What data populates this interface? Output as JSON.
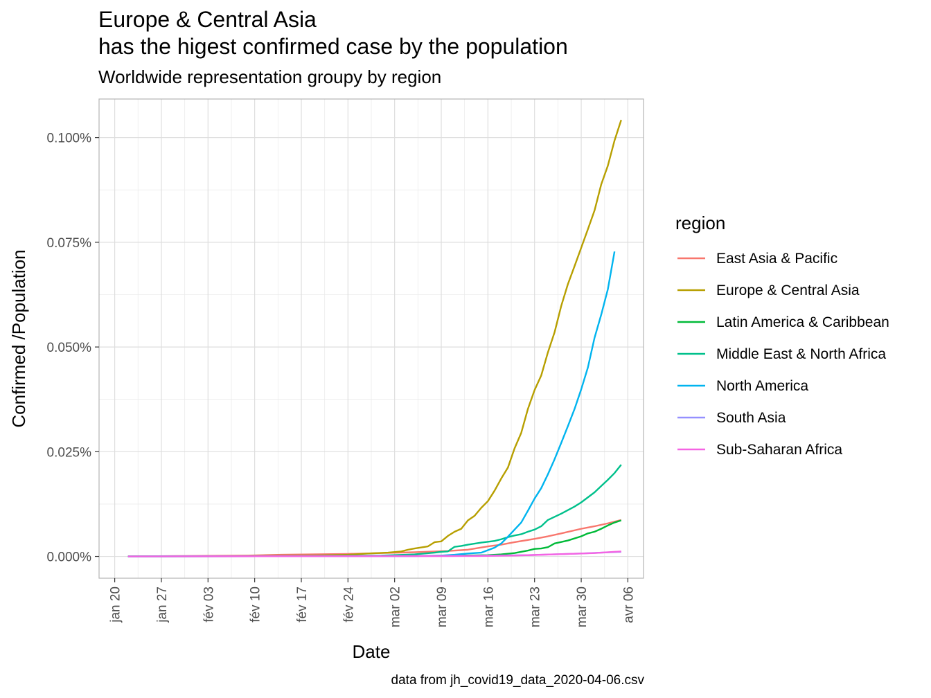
{
  "chart_data": {
    "type": "line",
    "title": "Europe & Central Asia",
    "title_line2": "has the higest confirmed case by the population",
    "subtitle": "Worldwide representation groupy by region",
    "xlabel": "Date",
    "ylabel": "Confirmed /Population",
    "caption": "data from jh_covid19_data_2020-04-06.csv",
    "legend_title": "region",
    "legend_position": "right",
    "grid": true,
    "x_ticks": [
      {
        "day": 0,
        "label": "jan 20"
      },
      {
        "day": 7,
        "label": "jan 27"
      },
      {
        "day": 14,
        "label": "fév 03"
      },
      {
        "day": 21,
        "label": "fév 10"
      },
      {
        "day": 28,
        "label": "fév 17"
      },
      {
        "day": 35,
        "label": "fév 24"
      },
      {
        "day": 42,
        "label": "mar 02"
      },
      {
        "day": 49,
        "label": "mar 09"
      },
      {
        "day": 56,
        "label": "mar 16"
      },
      {
        "day": 63,
        "label": "mar 23"
      },
      {
        "day": 70,
        "label": "mar 30"
      },
      {
        "day": 77,
        "label": "avr 06"
      }
    ],
    "xlim": [
      -2.35,
      79.35
    ],
    "y_ticks": [
      {
        "value": 0,
        "label": "0.000%"
      },
      {
        "value": 0.025,
        "label": "0.025%"
      },
      {
        "value": 0.05,
        "label": "0.050%"
      },
      {
        "value": 0.075,
        "label": "0.075%"
      },
      {
        "value": 0.1,
        "label": "0.100%"
      }
    ],
    "ylim": [
      -0.0052,
      0.1092
    ],
    "series": [
      {
        "name": "East Asia & Pacific",
        "color": "#F8766D",
        "points": [
          [
            2,
            0
          ],
          [
            10,
            0.0001
          ],
          [
            20,
            0.0002
          ],
          [
            25,
            0.0004
          ],
          [
            35,
            0.0006
          ],
          [
            40,
            0.0008
          ],
          [
            45,
            0.001
          ],
          [
            50,
            0.0013
          ],
          [
            53,
            0.0016
          ],
          [
            56,
            0.0024
          ],
          [
            58,
            0.0028
          ],
          [
            60,
            0.0034
          ],
          [
            63,
            0.0042
          ],
          [
            65,
            0.0048
          ],
          [
            67,
            0.0055
          ],
          [
            70,
            0.0066
          ],
          [
            72,
            0.0072
          ],
          [
            74,
            0.0079
          ],
          [
            76,
            0.0087
          ]
        ]
      },
      {
        "name": "Europe & Central Asia",
        "color": "#B79F00",
        "points": [
          [
            2,
            0
          ],
          [
            20,
            0.0001
          ],
          [
            30,
            0.0002
          ],
          [
            35,
            0.0004
          ],
          [
            38,
            0.0007
          ],
          [
            41,
            0.0009
          ],
          [
            43,
            0.0012
          ],
          [
            44,
            0.0016
          ],
          [
            45,
            0.0019
          ],
          [
            47,
            0.0024
          ],
          [
            48,
            0.0034
          ],
          [
            49,
            0.0036
          ],
          [
            50,
            0.0049
          ],
          [
            51,
            0.0059
          ],
          [
            52,
            0.0066
          ],
          [
            53,
            0.0086
          ],
          [
            54,
            0.0097
          ],
          [
            55,
            0.0116
          ],
          [
            56,
            0.0132
          ],
          [
            57,
            0.0157
          ],
          [
            58,
            0.0186
          ],
          [
            59,
            0.0212
          ],
          [
            60,
            0.0258
          ],
          [
            61,
            0.0295
          ],
          [
            62,
            0.0352
          ],
          [
            63,
            0.0397
          ],
          [
            64,
            0.0432
          ],
          [
            65,
            0.0487
          ],
          [
            66,
            0.0535
          ],
          [
            67,
            0.0598
          ],
          [
            68,
            0.065
          ],
          [
            69,
            0.0693
          ],
          [
            70,
            0.0737
          ],
          [
            71,
            0.0781
          ],
          [
            72,
            0.0826
          ],
          [
            73,
            0.0888
          ],
          [
            74,
            0.0933
          ],
          [
            75,
            0.0993
          ],
          [
            76,
            0.1042
          ]
        ]
      },
      {
        "name": "Latin America & Caribbean",
        "color": "#00BA38",
        "points": [
          [
            2,
            0
          ],
          [
            45,
            0.0001
          ],
          [
            52,
            0.0002
          ],
          [
            56,
            0.0003
          ],
          [
            58,
            0.0005
          ],
          [
            60,
            0.0008
          ],
          [
            62,
            0.0014
          ],
          [
            63,
            0.0018
          ],
          [
            64,
            0.0019
          ],
          [
            65,
            0.0022
          ],
          [
            66,
            0.0031
          ],
          [
            68,
            0.0038
          ],
          [
            70,
            0.0048
          ],
          [
            71,
            0.0055
          ],
          [
            72,
            0.0059
          ],
          [
            73,
            0.0066
          ],
          [
            74,
            0.0074
          ],
          [
            75,
            0.0081
          ],
          [
            76,
            0.0086
          ]
        ]
      },
      {
        "name": "Middle East & North Africa",
        "color": "#00C08B",
        "points": [
          [
            2,
            0
          ],
          [
            30,
            0.0001
          ],
          [
            40,
            0.0002
          ],
          [
            45,
            0.0005
          ],
          [
            48,
            0.0009
          ],
          [
            49,
            0.0011
          ],
          [
            50,
            0.0012
          ],
          [
            51,
            0.0023
          ],
          [
            52,
            0.0025
          ],
          [
            53,
            0.0028
          ],
          [
            55,
            0.0033
          ],
          [
            57,
            0.0037
          ],
          [
            58,
            0.0041
          ],
          [
            59,
            0.0046
          ],
          [
            60,
            0.005
          ],
          [
            61,
            0.0053
          ],
          [
            62,
            0.0059
          ],
          [
            63,
            0.0064
          ],
          [
            64,
            0.0072
          ],
          [
            65,
            0.0087
          ],
          [
            67,
            0.0102
          ],
          [
            69,
            0.0119
          ],
          [
            70,
            0.0129
          ],
          [
            71,
            0.0141
          ],
          [
            72,
            0.0153
          ],
          [
            73,
            0.0168
          ],
          [
            74,
            0.0183
          ],
          [
            75,
            0.0199
          ],
          [
            76,
            0.0219
          ]
        ]
      },
      {
        "name": "North America",
        "color": "#00B4EF",
        "points": [
          [
            2,
            0
          ],
          [
            45,
            0.0001
          ],
          [
            49,
            0.0002
          ],
          [
            51,
            0.0004
          ],
          [
            53,
            0.0007
          ],
          [
            55,
            0.0009
          ],
          [
            56,
            0.0015
          ],
          [
            57,
            0.0021
          ],
          [
            58,
            0.0031
          ],
          [
            59,
            0.0047
          ],
          [
            60,
            0.0064
          ],
          [
            61,
            0.0081
          ],
          [
            62,
            0.0109
          ],
          [
            63,
            0.0138
          ],
          [
            64,
            0.0163
          ],
          [
            65,
            0.0196
          ],
          [
            66,
            0.0232
          ],
          [
            67,
            0.0271
          ],
          [
            68,
            0.0311
          ],
          [
            69,
            0.0352
          ],
          [
            70,
            0.0399
          ],
          [
            71,
            0.0451
          ],
          [
            72,
            0.0522
          ],
          [
            73,
            0.0577
          ],
          [
            74,
            0.0638
          ],
          [
            75,
            0.0728
          ]
        ]
      },
      {
        "name": "South Asia",
        "color": "#9590FF",
        "points": [
          [
            2,
            0
          ],
          [
            50,
            0.0001
          ],
          [
            56,
            0.0002
          ],
          [
            62,
            0.0003
          ],
          [
            66,
            0.0005
          ],
          [
            70,
            0.0007
          ],
          [
            73,
            0.0009
          ],
          [
            76,
            0.0011
          ]
        ]
      },
      {
        "name": "Sub-Saharan Africa",
        "color": "#F564E3",
        "points": [
          [
            2,
            0
          ],
          [
            55,
            0.0001
          ],
          [
            60,
            0.0002
          ],
          [
            64,
            0.0004
          ],
          [
            68,
            0.0006
          ],
          [
            72,
            0.0008
          ],
          [
            76,
            0.0012
          ]
        ]
      }
    ]
  }
}
